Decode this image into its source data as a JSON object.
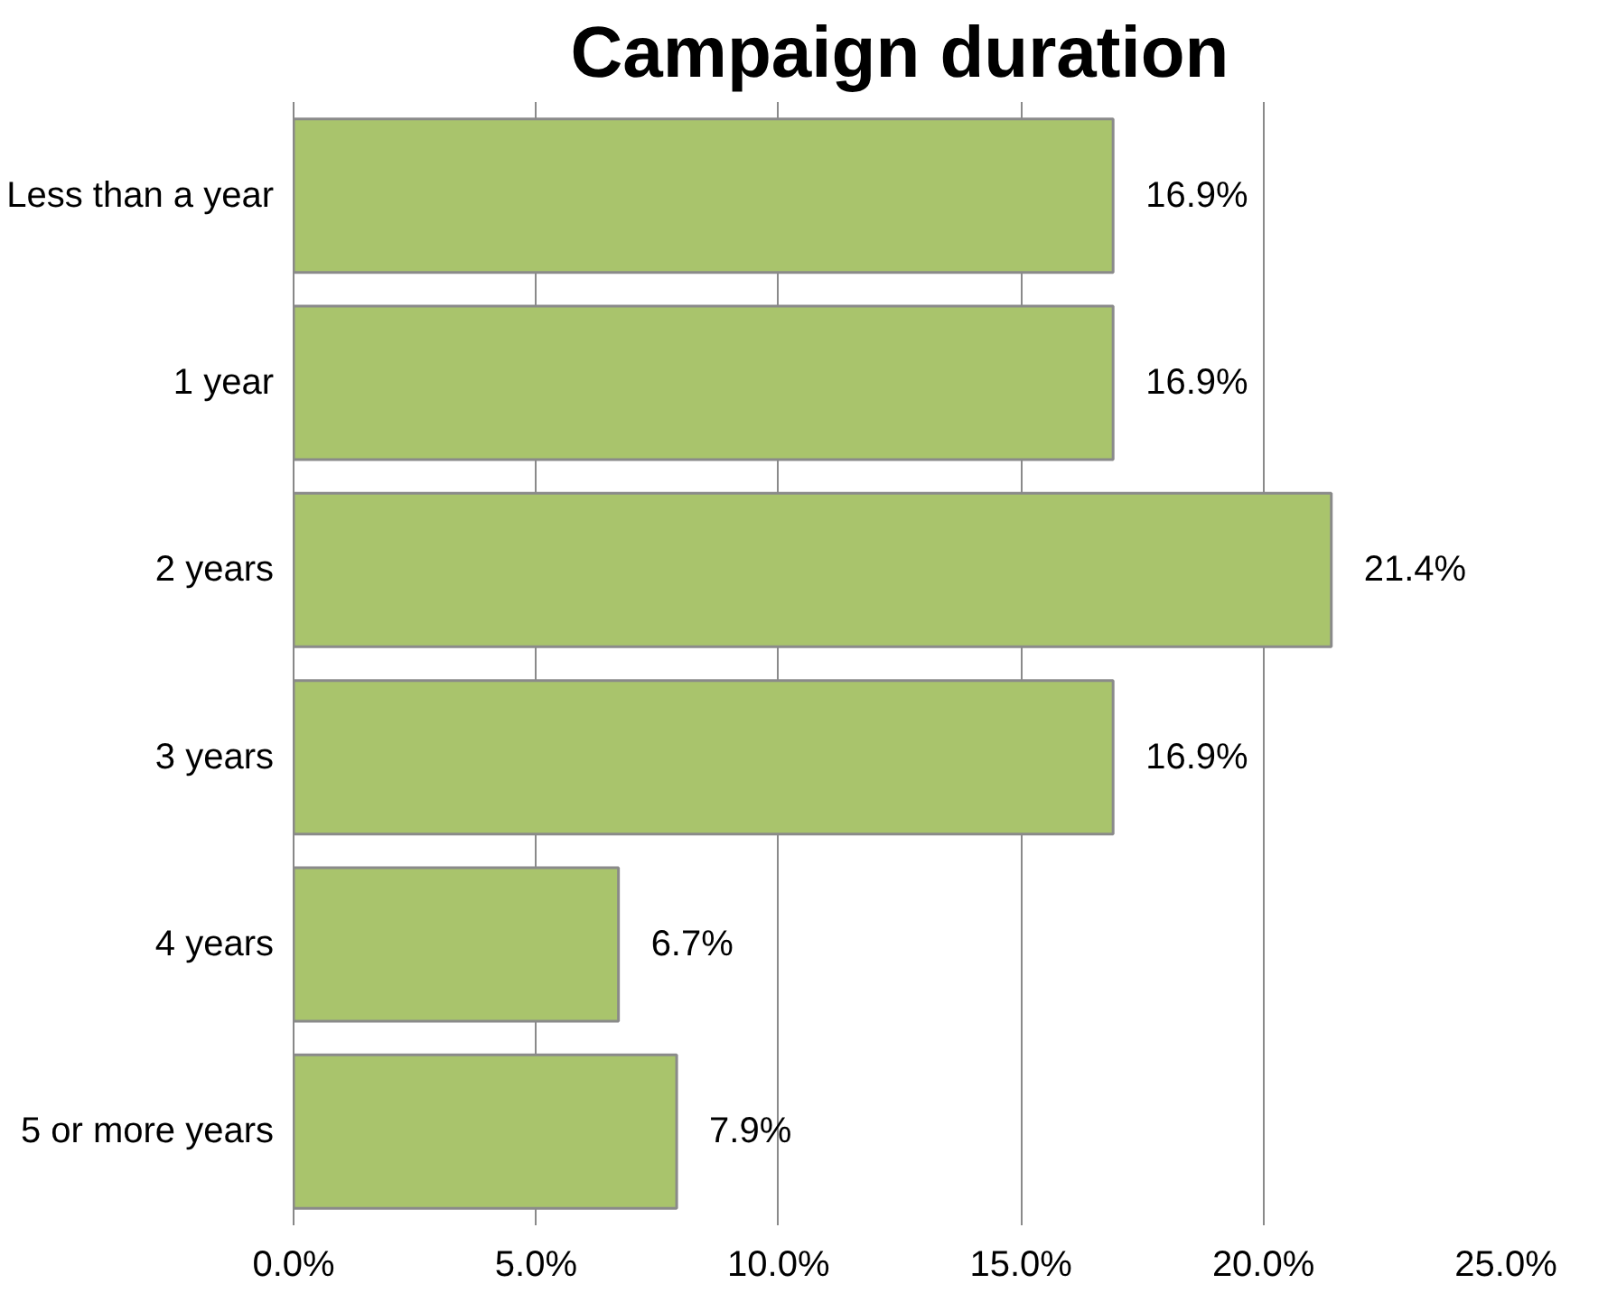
{
  "chart_data": {
    "type": "bar",
    "orientation": "horizontal",
    "title": "Campaign duration",
    "categories": [
      "Less than a year",
      "1 year",
      "2 years",
      "3 years",
      "4 years",
      "5 or more years"
    ],
    "values": [
      16.9,
      16.9,
      21.4,
      16.9,
      6.7,
      7.9
    ],
    "value_labels": [
      "16.9%",
      "16.9%",
      "21.4%",
      "16.9%",
      "6.7%",
      "7.9%"
    ],
    "color": "#a9c46c",
    "xlim": [
      0,
      25
    ],
    "xticks": [
      {
        "value": 0,
        "label": "0.0%"
      },
      {
        "value": 5,
        "label": "5.0%"
      },
      {
        "value": 10,
        "label": "10.0%"
      },
      {
        "value": 15,
        "label": "15.0%"
      },
      {
        "value": 20,
        "label": "20.0%"
      },
      {
        "value": 25,
        "label": "25.0%"
      }
    ],
    "grid": "x"
  }
}
